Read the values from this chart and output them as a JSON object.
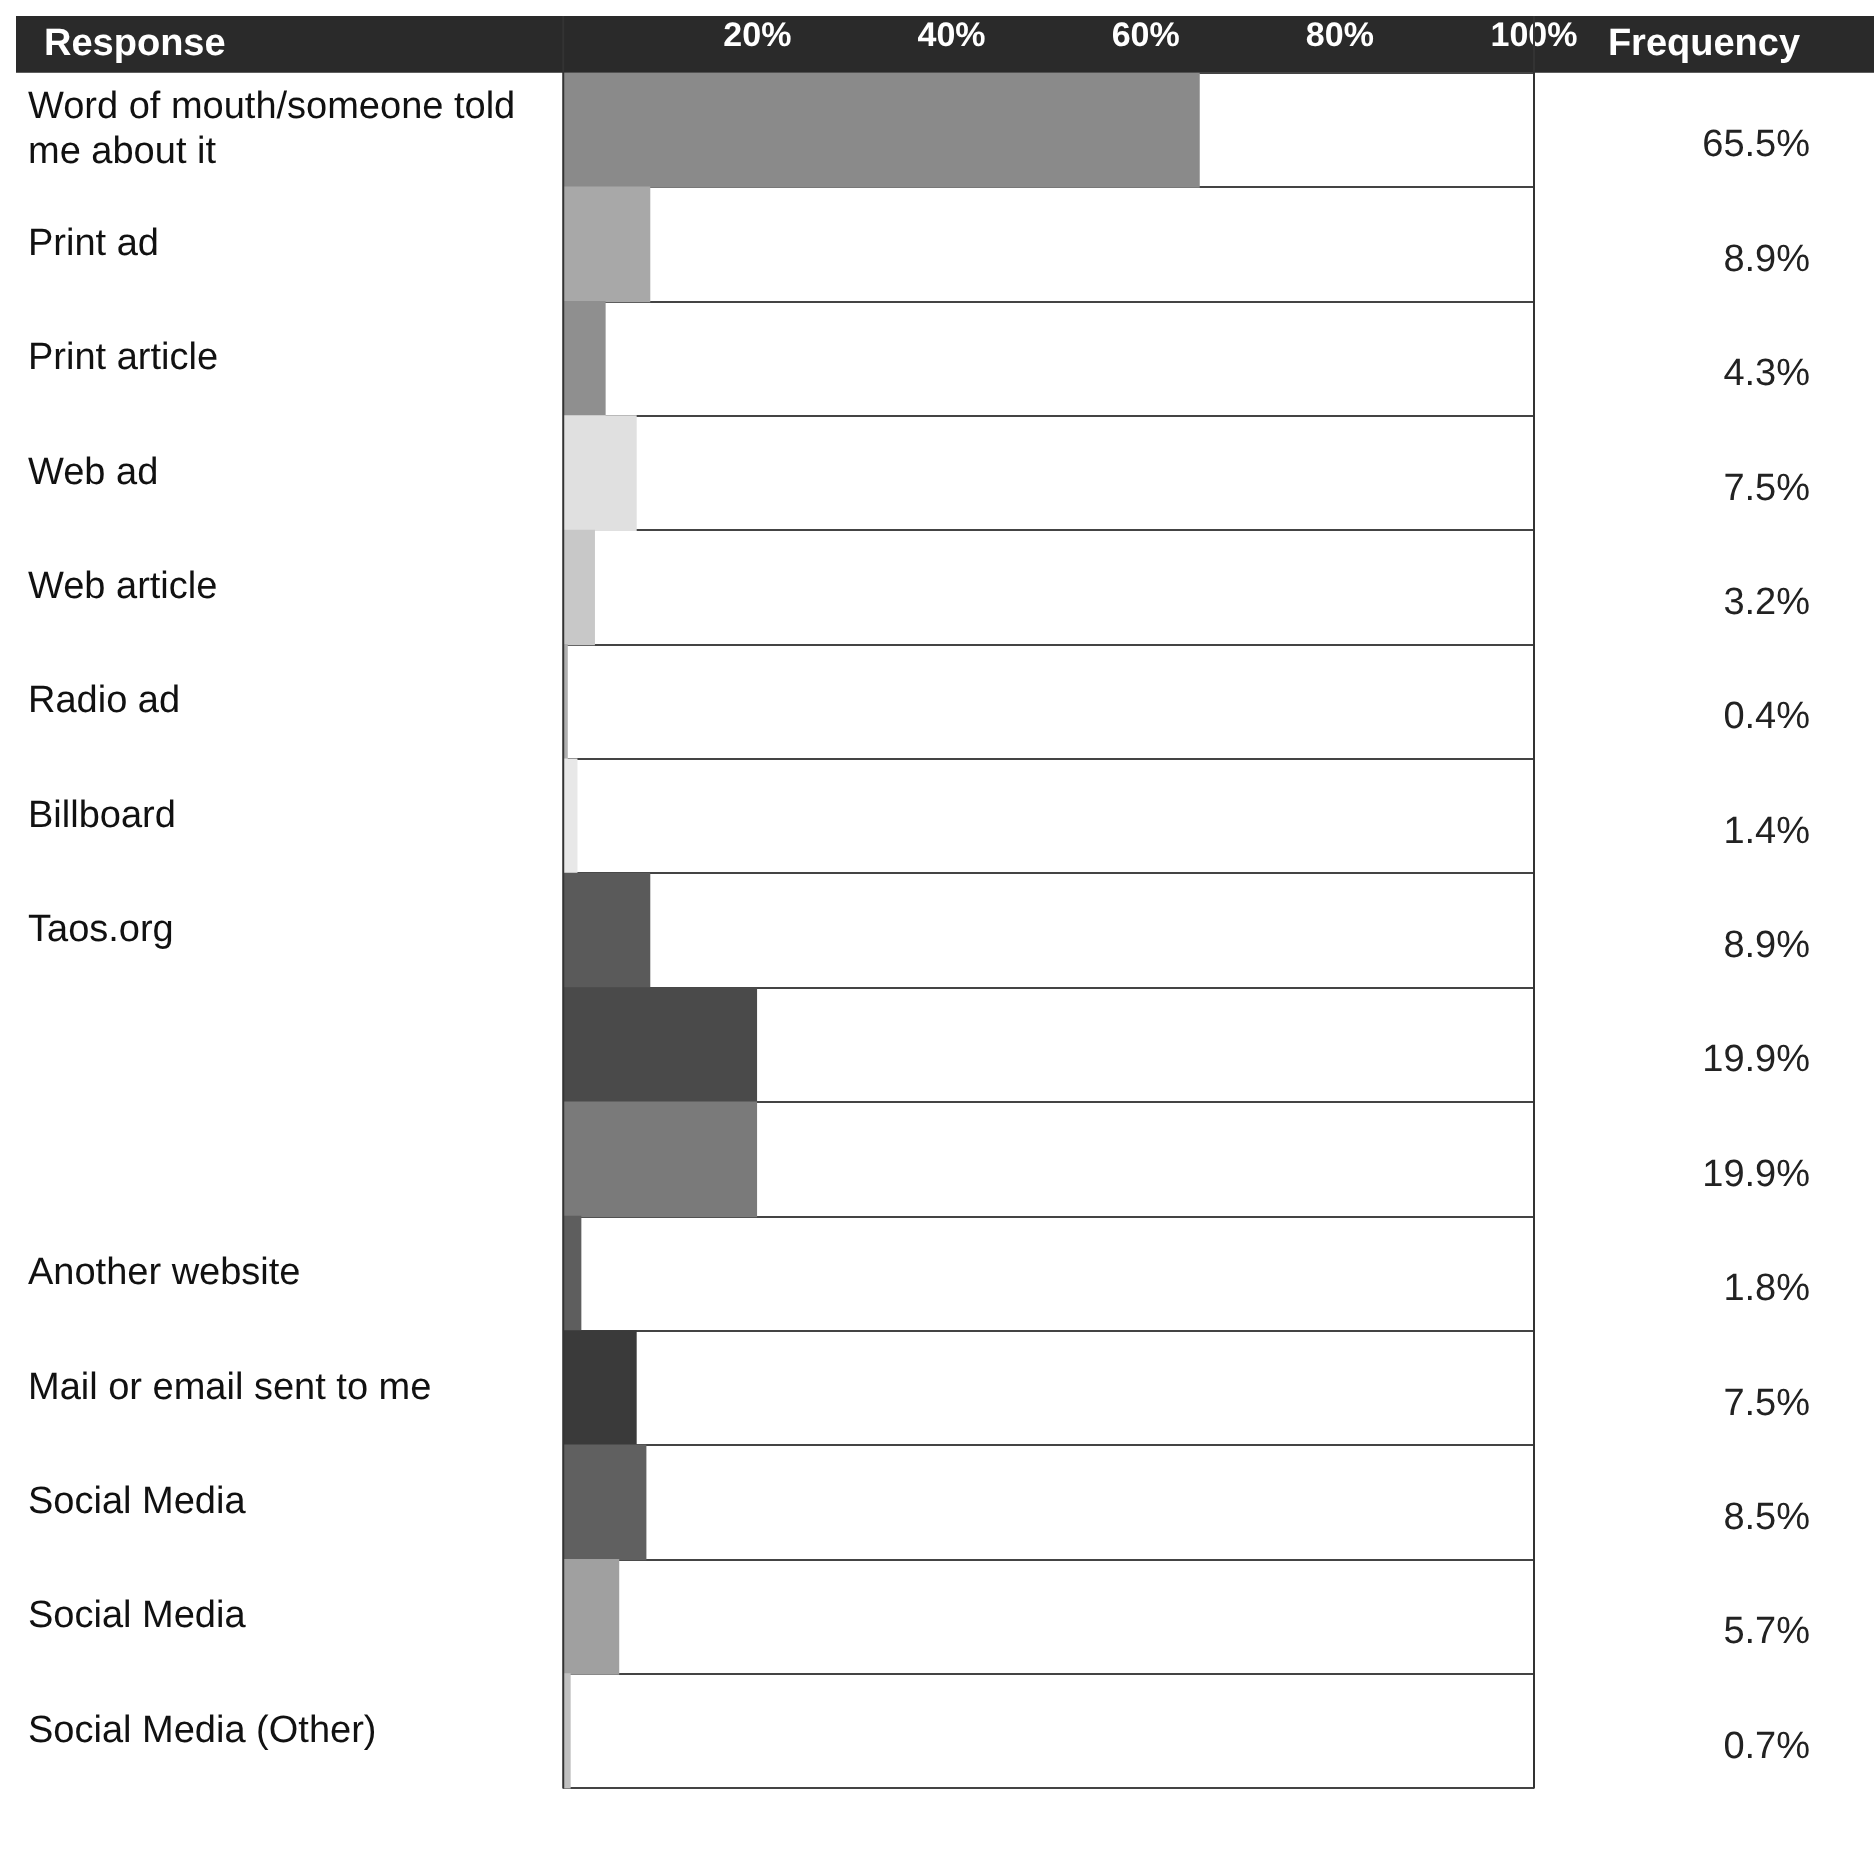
{
  "chart_data": {
    "type": "bar",
    "orientation": "horizontal",
    "ylabel": "Response",
    "y2label": "Frequency",
    "categories": [
      "Word of mouth/someone told me about it",
      "Print ad",
      "Print article",
      "Web ad",
      "Web article",
      "Radio ad",
      "Billboard",
      "Taos.org",
      null,
      null,
      "Another website",
      "Mail or email sent to me",
      "Social Media",
      "Social Media",
      "Social Media (Other)"
    ],
    "values": [
      65.5,
      8.9,
      4.3,
      7.5,
      3.2,
      0.4,
      1.4,
      8.9,
      19.9,
      19.9,
      1.8,
      7.5,
      8.5,
      5.7,
      0.7
    ],
    "colors": [
      "#8a8a8a",
      "#a8a8a8",
      "#8f8f8f",
      "#e0e0e0",
      "#c8c8c8",
      "#b0b0b0",
      "#e8e8e8",
      "#5a5a5a",
      "#4a4a4a",
      "#7a7a7a",
      "#5e5e5e",
      "#3a3a3a",
      "#606060",
      "#a0a0a0",
      "#c0c0c0"
    ],
    "value_labels": [
      "65.5%",
      "8.9%",
      "4.3%",
      "7.5%",
      "3.2%",
      "0.4%",
      "1.4%",
      "8.9%",
      "19.9%",
      "19.9%",
      "1.8%",
      "7.5%",
      "8.5%",
      "5.7%",
      "0.7%"
    ],
    "xlim": [
      0,
      100
    ],
    "xticks": [
      {
        "value": 20,
        "label": "20%"
      },
      {
        "value": 40,
        "label": "40%"
      },
      {
        "value": 60,
        "label": "60%"
      },
      {
        "value": 80,
        "label": "80%"
      },
      {
        "value": 100,
        "label": "100%"
      }
    ],
    "grid": "y",
    "legend": false
  }
}
